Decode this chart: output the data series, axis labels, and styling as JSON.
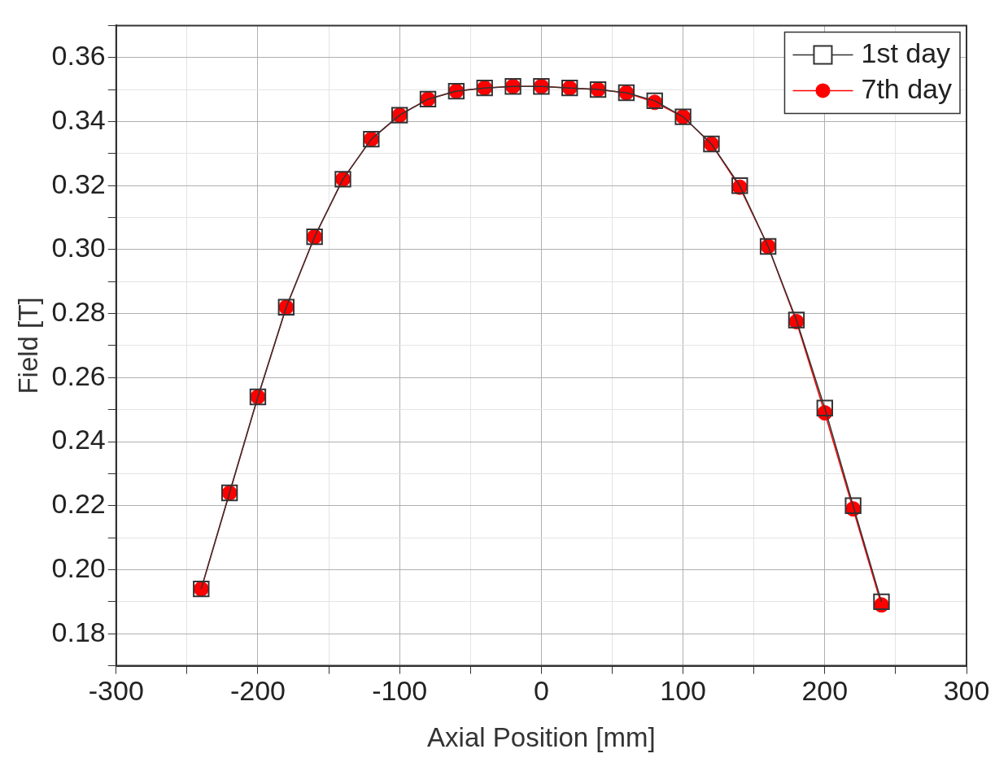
{
  "chart_data": {
    "type": "line",
    "xlabel": "Axial Position [mm]",
    "ylabel": "Field [T]",
    "x": [
      -240,
      -220,
      -200,
      -180,
      -160,
      -140,
      -120,
      -100,
      -80,
      -60,
      -40,
      -20,
      0,
      20,
      40,
      60,
      80,
      100,
      120,
      140,
      160,
      180,
      200,
      220,
      240
    ],
    "series": [
      {
        "name": "1st day",
        "color": "#333333",
        "marker": "square",
        "values": [
          0.194,
          0.224,
          0.254,
          0.282,
          0.304,
          0.322,
          0.3345,
          0.342,
          0.347,
          0.3495,
          0.3505,
          0.351,
          0.351,
          0.3505,
          0.35,
          0.349,
          0.3465,
          0.3415,
          0.333,
          0.32,
          0.301,
          0.278,
          0.2505,
          0.22,
          0.19
        ]
      },
      {
        "name": "7th day",
        "color": "#ff0000",
        "marker": "circle",
        "values": [
          0.194,
          0.224,
          0.254,
          0.282,
          0.304,
          0.322,
          0.3345,
          0.342,
          0.347,
          0.3495,
          0.3505,
          0.351,
          0.351,
          0.3505,
          0.35,
          0.349,
          0.346,
          0.3415,
          0.333,
          0.3195,
          0.301,
          0.2775,
          0.249,
          0.219,
          0.189
        ]
      }
    ],
    "xlim": [
      -300,
      300
    ],
    "xticks": [
      -300,
      {
        "value": -250,
        "label": null
      },
      -200,
      {
        "value": -150,
        "label": null
      },
      -100,
      {
        "value": -50,
        "label": null
      },
      0,
      {
        "value": 50,
        "label": null
      },
      100,
      {
        "value": 150,
        "label": null
      },
      200,
      {
        "value": 250,
        "label": null
      },
      300
    ],
    "ylim": [
      0.17,
      0.37
    ],
    "yticks": [
      {
        "value": 0.17,
        "label": null
      },
      0.18,
      {
        "value": 0.19,
        "label": null
      },
      "0.20",
      {
        "value": 0.21,
        "label": null
      },
      0.22,
      {
        "value": 0.23,
        "label": null
      },
      0.24,
      {
        "value": 0.25,
        "label": null
      },
      0.26,
      {
        "value": 0.27,
        "label": null
      },
      0.28,
      {
        "value": 0.29,
        "label": null
      },
      "0.30",
      {
        "value": 0.31,
        "label": null
      },
      0.32,
      {
        "value": 0.33,
        "label": null
      },
      0.34,
      {
        "value": 0.35,
        "label": null
      },
      0.36,
      {
        "value": 0.37,
        "label": null
      }
    ],
    "grid": true,
    "legend": "top right",
    "line_style": "solid"
  }
}
